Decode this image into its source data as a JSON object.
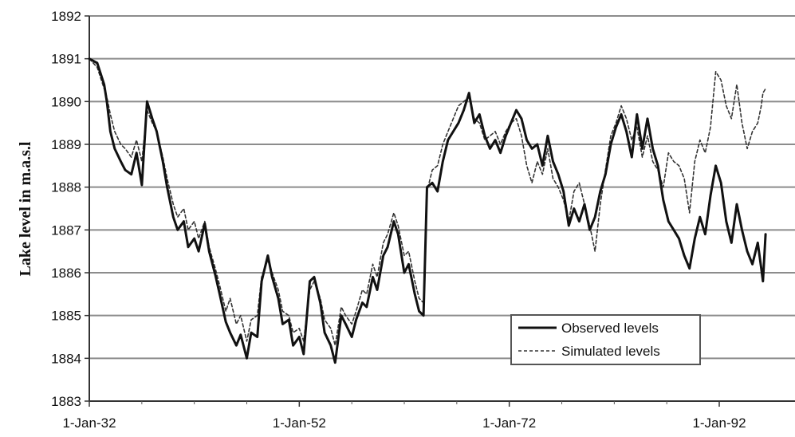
{
  "chart_data": {
    "type": "line",
    "title": "",
    "xlabel": "",
    "ylabel": "Lake level in m.a.s.l",
    "xlim": [
      "1932-01-01",
      "1996-06-01"
    ],
    "ylim": [
      1883,
      1892
    ],
    "x_ticks": [
      {
        "x": "1932-01-01",
        "label": "1-Jan-32"
      },
      {
        "x": "1952-01-01",
        "label": "1-Jan-52"
      },
      {
        "x": "1972-01-01",
        "label": "1-Jan-72"
      },
      {
        "x": "1992-01-01",
        "label": "1-Jan-92"
      }
    ],
    "y_ticks": [
      1883,
      1884,
      1885,
      1886,
      1887,
      1888,
      1889,
      1890,
      1891,
      1892
    ],
    "grid": "horizontal",
    "legend_position": "bottom-right",
    "series": [
      {
        "name": "Observed levels",
        "style": "solid",
        "color": "#111111",
        "points": [
          [
            "1932-01-01",
            1891.0
          ],
          [
            "1932-10-01",
            1890.9
          ],
          [
            "1933-06-01",
            1890.4
          ],
          [
            "1933-09-01",
            1890.0
          ],
          [
            "1934-01-01",
            1889.3
          ],
          [
            "1934-06-01",
            1888.9
          ],
          [
            "1935-01-01",
            1888.6
          ],
          [
            "1935-06-01",
            1888.4
          ],
          [
            "1936-01-01",
            1888.3
          ],
          [
            "1936-07-01",
            1888.8
          ],
          [
            "1937-01-01",
            1888.05
          ],
          [
            "1937-07-01",
            1890.0
          ],
          [
            "1938-01-01",
            1889.6
          ],
          [
            "1938-06-01",
            1889.3
          ],
          [
            "1939-01-01",
            1888.6
          ],
          [
            "1939-06-01",
            1888.0
          ],
          [
            "1940-01-01",
            1887.3
          ],
          [
            "1940-06-01",
            1887.0
          ],
          [
            "1941-01-01",
            1887.2
          ],
          [
            "1941-06-01",
            1886.6
          ],
          [
            "1942-01-01",
            1886.8
          ],
          [
            "1942-06-01",
            1886.5
          ],
          [
            "1943-01-01",
            1887.15
          ],
          [
            "1943-06-01",
            1886.5
          ],
          [
            "1944-01-01",
            1885.95
          ],
          [
            "1944-06-01",
            1885.5
          ],
          [
            "1945-01-01",
            1884.85
          ],
          [
            "1945-06-01",
            1884.6
          ],
          [
            "1946-01-01",
            1884.3
          ],
          [
            "1946-06-01",
            1884.55
          ],
          [
            "1947-01-01",
            1884.0
          ],
          [
            "1947-06-01",
            1884.6
          ],
          [
            "1948-01-01",
            1884.5
          ],
          [
            "1948-06-01",
            1885.8
          ],
          [
            "1949-01-01",
            1886.4
          ],
          [
            "1949-06-01",
            1885.9
          ],
          [
            "1950-01-01",
            1885.4
          ],
          [
            "1950-06-01",
            1884.8
          ],
          [
            "1951-01-01",
            1884.9
          ],
          [
            "1951-06-01",
            1884.3
          ],
          [
            "1952-01-01",
            1884.5
          ],
          [
            "1952-06-01",
            1884.1
          ],
          [
            "1953-01-01",
            1885.8
          ],
          [
            "1953-06-01",
            1885.9
          ],
          [
            "1954-01-01",
            1885.3
          ],
          [
            "1954-06-01",
            1884.6
          ],
          [
            "1955-01-01",
            1884.3
          ],
          [
            "1955-06-01",
            1883.9
          ],
          [
            "1956-01-01",
            1885.0
          ],
          [
            "1956-06-01",
            1884.8
          ],
          [
            "1957-01-01",
            1884.5
          ],
          [
            "1957-06-01",
            1884.9
          ],
          [
            "1958-01-01",
            1885.3
          ],
          [
            "1958-06-01",
            1885.2
          ],
          [
            "1959-01-01",
            1885.9
          ],
          [
            "1959-06-01",
            1885.6
          ],
          [
            "1960-01-01",
            1886.4
          ],
          [
            "1960-06-01",
            1886.6
          ],
          [
            "1961-01-01",
            1887.2
          ],
          [
            "1961-06-01",
            1886.9
          ],
          [
            "1962-01-01",
            1886.0
          ],
          [
            "1962-06-01",
            1886.2
          ],
          [
            "1963-01-01",
            1885.5
          ],
          [
            "1963-06-01",
            1885.1
          ],
          [
            "1963-11-01",
            1885.0
          ],
          [
            "1964-03-01",
            1888.0
          ],
          [
            "1964-09-01",
            1888.1
          ],
          [
            "1965-03-01",
            1887.9
          ],
          [
            "1965-09-01",
            1888.6
          ],
          [
            "1966-03-01",
            1889.1
          ],
          [
            "1966-09-01",
            1889.3
          ],
          [
            "1967-03-01",
            1889.5
          ],
          [
            "1967-09-01",
            1889.8
          ],
          [
            "1968-03-01",
            1890.2
          ],
          [
            "1968-09-01",
            1889.5
          ],
          [
            "1969-03-01",
            1889.7
          ],
          [
            "1969-09-01",
            1889.2
          ],
          [
            "1970-03-01",
            1888.9
          ],
          [
            "1970-09-01",
            1889.1
          ],
          [
            "1971-03-01",
            1888.8
          ],
          [
            "1971-09-01",
            1889.2
          ],
          [
            "1972-03-01",
            1889.5
          ],
          [
            "1972-09-01",
            1889.8
          ],
          [
            "1973-03-01",
            1889.6
          ],
          [
            "1973-09-01",
            1889.1
          ],
          [
            "1974-03-01",
            1888.9
          ],
          [
            "1974-09-01",
            1889.0
          ],
          [
            "1975-03-01",
            1888.5
          ],
          [
            "1975-09-01",
            1889.2
          ],
          [
            "1976-03-01",
            1888.6
          ],
          [
            "1976-09-01",
            1888.3
          ],
          [
            "1977-03-01",
            1887.9
          ],
          [
            "1977-09-01",
            1887.1
          ],
          [
            "1978-03-01",
            1887.5
          ],
          [
            "1978-09-01",
            1887.2
          ],
          [
            "1979-03-01",
            1887.6
          ],
          [
            "1979-09-01",
            1887.0
          ],
          [
            "1980-03-01",
            1887.3
          ],
          [
            "1980-09-01",
            1887.9
          ],
          [
            "1981-03-01",
            1888.3
          ],
          [
            "1981-09-01",
            1889.0
          ],
          [
            "1982-03-01",
            1889.4
          ],
          [
            "1982-09-01",
            1889.7
          ],
          [
            "1983-03-01",
            1889.3
          ],
          [
            "1983-09-01",
            1888.7
          ],
          [
            "1984-03-01",
            1889.7
          ],
          [
            "1984-09-01",
            1888.9
          ],
          [
            "1985-03-01",
            1889.6
          ],
          [
            "1985-09-01",
            1888.9
          ],
          [
            "1986-03-01",
            1888.5
          ],
          [
            "1986-09-01",
            1887.7
          ],
          [
            "1987-03-01",
            1887.2
          ],
          [
            "1987-09-01",
            1887.0
          ],
          [
            "1988-03-01",
            1886.8
          ],
          [
            "1988-09-01",
            1886.4
          ],
          [
            "1989-03-01",
            1886.1
          ],
          [
            "1989-09-01",
            1886.8
          ],
          [
            "1990-03-01",
            1887.3
          ],
          [
            "1990-09-01",
            1886.9
          ],
          [
            "1991-03-01",
            1887.8
          ],
          [
            "1991-09-01",
            1888.5
          ],
          [
            "1992-03-01",
            1888.1
          ],
          [
            "1992-09-01",
            1887.2
          ],
          [
            "1993-03-01",
            1886.7
          ],
          [
            "1993-09-01",
            1887.6
          ],
          [
            "1994-03-01",
            1887.0
          ],
          [
            "1994-09-01",
            1886.5
          ],
          [
            "1995-03-01",
            1886.2
          ],
          [
            "1995-09-01",
            1886.7
          ],
          [
            "1996-01-01",
            1886.1
          ],
          [
            "1996-03-01",
            1885.8
          ],
          [
            "1996-06-01",
            1886.9
          ]
        ]
      },
      {
        "name": "Simulated levels",
        "style": "dashed",
        "color": "#333333",
        "points": [
          [
            "1932-01-01",
            1891.0
          ],
          [
            "1932-10-01",
            1890.8
          ],
          [
            "1933-06-01",
            1890.3
          ],
          [
            "1933-09-01",
            1890.1
          ],
          [
            "1934-01-01",
            1889.7
          ],
          [
            "1934-06-01",
            1889.3
          ],
          [
            "1935-01-01",
            1889.0
          ],
          [
            "1935-06-01",
            1888.9
          ],
          [
            "1936-01-01",
            1888.7
          ],
          [
            "1936-07-01",
            1889.1
          ],
          [
            "1937-01-01",
            1888.6
          ],
          [
            "1937-07-01",
            1889.8
          ],
          [
            "1938-01-01",
            1889.5
          ],
          [
            "1938-06-01",
            1889.3
          ],
          [
            "1939-01-01",
            1888.7
          ],
          [
            "1939-06-01",
            1888.2
          ],
          [
            "1940-01-01",
            1887.6
          ],
          [
            "1940-06-01",
            1887.3
          ],
          [
            "1941-01-01",
            1887.5
          ],
          [
            "1941-06-01",
            1887.0
          ],
          [
            "1942-01-01",
            1887.2
          ],
          [
            "1942-06-01",
            1886.8
          ],
          [
            "1943-01-01",
            1887.2
          ],
          [
            "1943-06-01",
            1886.6
          ],
          [
            "1944-01-01",
            1886.1
          ],
          [
            "1944-06-01",
            1885.7
          ],
          [
            "1945-01-01",
            1885.1
          ],
          [
            "1945-06-01",
            1885.4
          ],
          [
            "1946-01-01",
            1884.8
          ],
          [
            "1946-06-01",
            1885.0
          ],
          [
            "1947-01-01",
            1884.4
          ],
          [
            "1947-06-01",
            1884.9
          ],
          [
            "1948-01-01",
            1885.0
          ],
          [
            "1948-06-01",
            1885.9
          ],
          [
            "1949-01-01",
            1886.3
          ],
          [
            "1949-06-01",
            1886.0
          ],
          [
            "1950-01-01",
            1885.6
          ],
          [
            "1950-06-01",
            1885.1
          ],
          [
            "1951-01-01",
            1885.0
          ],
          [
            "1951-06-01",
            1884.6
          ],
          [
            "1952-01-01",
            1884.7
          ],
          [
            "1952-06-01",
            1884.4
          ],
          [
            "1953-01-01",
            1885.6
          ],
          [
            "1953-06-01",
            1885.8
          ],
          [
            "1954-01-01",
            1885.4
          ],
          [
            "1954-06-01",
            1884.9
          ],
          [
            "1955-01-01",
            1884.7
          ],
          [
            "1955-06-01",
            1884.3
          ],
          [
            "1956-01-01",
            1885.2
          ],
          [
            "1956-06-01",
            1885.0
          ],
          [
            "1957-01-01",
            1884.8
          ],
          [
            "1957-06-01",
            1885.1
          ],
          [
            "1958-01-01",
            1885.6
          ],
          [
            "1958-06-01",
            1885.5
          ],
          [
            "1959-01-01",
            1886.2
          ],
          [
            "1959-06-01",
            1885.9
          ],
          [
            "1960-01-01",
            1886.7
          ],
          [
            "1960-06-01",
            1886.9
          ],
          [
            "1961-01-01",
            1887.4
          ],
          [
            "1961-06-01",
            1887.1
          ],
          [
            "1962-01-01",
            1886.4
          ],
          [
            "1962-06-01",
            1886.5
          ],
          [
            "1963-01-01",
            1885.8
          ],
          [
            "1963-06-01",
            1885.4
          ],
          [
            "1963-11-01",
            1885.3
          ],
          [
            "1964-03-01",
            1887.9
          ],
          [
            "1964-09-01",
            1888.4
          ],
          [
            "1965-03-01",
            1888.5
          ],
          [
            "1965-09-01",
            1889.0
          ],
          [
            "1966-03-01",
            1889.3
          ],
          [
            "1966-09-01",
            1889.6
          ],
          [
            "1967-03-01",
            1889.9
          ],
          [
            "1967-09-01",
            1890.0
          ],
          [
            "1968-03-01",
            1890.1
          ],
          [
            "1968-09-01",
            1889.6
          ],
          [
            "1969-03-01",
            1889.5
          ],
          [
            "1969-09-01",
            1889.1
          ],
          [
            "1970-03-01",
            1889.2
          ],
          [
            "1970-09-01",
            1889.3
          ],
          [
            "1971-03-01",
            1889.0
          ],
          [
            "1971-09-01",
            1889.3
          ],
          [
            "1972-03-01",
            1889.5
          ],
          [
            "1972-09-01",
            1889.6
          ],
          [
            "1973-03-01",
            1889.2
          ],
          [
            "1973-09-01",
            1888.5
          ],
          [
            "1974-03-01",
            1888.1
          ],
          [
            "1974-09-01",
            1888.6
          ],
          [
            "1975-03-01",
            1888.3
          ],
          [
            "1975-09-01",
            1888.9
          ],
          [
            "1976-03-01",
            1888.2
          ],
          [
            "1976-09-01",
            1888.0
          ],
          [
            "1977-03-01",
            1887.7
          ],
          [
            "1977-09-01",
            1887.2
          ],
          [
            "1978-03-01",
            1887.9
          ],
          [
            "1978-09-01",
            1888.1
          ],
          [
            "1979-03-01",
            1887.6
          ],
          [
            "1979-09-01",
            1887.1
          ],
          [
            "1980-03-01",
            1886.5
          ],
          [
            "1980-09-01",
            1887.6
          ],
          [
            "1981-03-01",
            1888.4
          ],
          [
            "1981-09-01",
            1889.2
          ],
          [
            "1982-03-01",
            1889.5
          ],
          [
            "1982-09-01",
            1889.9
          ],
          [
            "1983-03-01",
            1889.6
          ],
          [
            "1983-09-01",
            1889.1
          ],
          [
            "1984-03-01",
            1889.4
          ],
          [
            "1984-09-01",
            1888.7
          ],
          [
            "1985-03-01",
            1889.2
          ],
          [
            "1985-09-01",
            1888.6
          ],
          [
            "1986-03-01",
            1888.4
          ],
          [
            "1986-09-01",
            1888.0
          ],
          [
            "1987-03-01",
            1888.8
          ],
          [
            "1987-09-01",
            1888.6
          ],
          [
            "1988-03-01",
            1888.5
          ],
          [
            "1988-09-01",
            1888.2
          ],
          [
            "1989-03-01",
            1887.4
          ],
          [
            "1989-09-01",
            1888.6
          ],
          [
            "1990-03-01",
            1889.1
          ],
          [
            "1990-09-01",
            1888.8
          ],
          [
            "1991-03-01",
            1889.4
          ],
          [
            "1991-09-01",
            1890.7
          ],
          [
            "1992-03-01",
            1890.5
          ],
          [
            "1992-09-01",
            1889.9
          ],
          [
            "1993-03-01",
            1889.6
          ],
          [
            "1993-09-01",
            1890.4
          ],
          [
            "1994-03-01",
            1889.5
          ],
          [
            "1994-09-01",
            1888.9
          ],
          [
            "1995-03-01",
            1889.3
          ],
          [
            "1995-09-01",
            1889.5
          ],
          [
            "1996-01-01",
            1889.9
          ],
          [
            "1996-03-01",
            1890.2
          ],
          [
            "1996-06-01",
            1890.3
          ]
        ]
      }
    ]
  }
}
